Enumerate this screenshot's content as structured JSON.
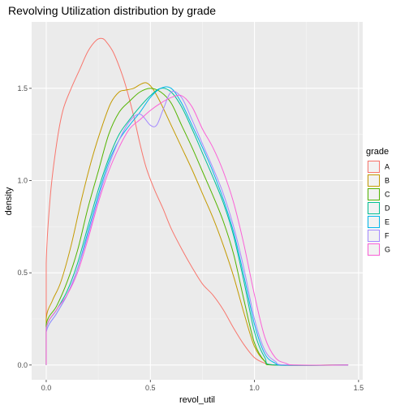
{
  "chart_data": {
    "type": "line",
    "title": "Revolving Utilization distribution by grade",
    "xlabel": "revol_util",
    "ylabel": "density",
    "xlim": [
      -0.07,
      1.52
    ],
    "ylim": [
      -0.08,
      1.86
    ],
    "xticks": [
      0.0,
      0.5,
      1.0,
      1.5
    ],
    "xtick_labels": [
      "0.0",
      "0.5",
      "1.0",
      "1.5"
    ],
    "yticks": [
      0.0,
      0.5,
      1.0,
      1.5
    ],
    "ytick_labels": [
      "0.0",
      "0.5",
      "1.0",
      "1.5"
    ],
    "grid": true,
    "background": "#ebebeb",
    "legend": {
      "title": "grade",
      "placement": "right"
    },
    "series": [
      {
        "name": "A",
        "color": "#F8766D",
        "x": [
          0,
          0,
          0.02,
          0.05,
          0.08,
          0.12,
          0.16,
          0.2,
          0.24,
          0.27,
          0.29,
          0.32,
          0.35,
          0.38,
          0.42,
          0.45,
          0.48,
          0.52,
          0.56,
          0.6,
          0.65,
          0.7,
          0.75,
          0.8,
          0.85,
          0.9,
          0.95,
          1.0,
          1.05,
          1.1,
          1.45
        ],
        "y": [
          0,
          0.55,
          0.92,
          1.2,
          1.38,
          1.5,
          1.6,
          1.7,
          1.76,
          1.77,
          1.75,
          1.7,
          1.62,
          1.52,
          1.35,
          1.2,
          1.07,
          0.95,
          0.85,
          0.74,
          0.63,
          0.53,
          0.44,
          0.38,
          0.3,
          0.2,
          0.11,
          0.04,
          0.01,
          0.0,
          0.0
        ]
      },
      {
        "name": "B",
        "color": "#C49A00",
        "x": [
          0,
          0,
          0.03,
          0.07,
          0.12,
          0.17,
          0.22,
          0.27,
          0.31,
          0.35,
          0.38,
          0.42,
          0.45,
          0.48,
          0.51,
          0.55,
          0.6,
          0.65,
          0.7,
          0.75,
          0.8,
          0.85,
          0.9,
          0.95,
          1.0,
          1.05,
          1.1,
          1.45
        ],
        "y": [
          0,
          0.25,
          0.35,
          0.45,
          0.65,
          0.9,
          1.12,
          1.3,
          1.42,
          1.48,
          1.49,
          1.5,
          1.52,
          1.53,
          1.5,
          1.42,
          1.3,
          1.18,
          1.06,
          0.93,
          0.8,
          0.65,
          0.48,
          0.28,
          0.1,
          0.02,
          0.0,
          0.0
        ]
      },
      {
        "name": "C",
        "color": "#53B400",
        "x": [
          0,
          0,
          0.05,
          0.1,
          0.15,
          0.2,
          0.25,
          0.3,
          0.35,
          0.4,
          0.45,
          0.5,
          0.55,
          0.6,
          0.65,
          0.7,
          0.75,
          0.8,
          0.85,
          0.9,
          0.95,
          1.0,
          1.05,
          1.1,
          1.45
        ],
        "y": [
          0,
          0.22,
          0.32,
          0.45,
          0.62,
          0.85,
          1.05,
          1.25,
          1.37,
          1.43,
          1.48,
          1.5,
          1.48,
          1.42,
          1.3,
          1.18,
          1.05,
          0.92,
          0.78,
          0.6,
          0.35,
          0.12,
          0.02,
          0.0,
          0.0
        ]
      },
      {
        "name": "D",
        "color": "#00C094",
        "x": [
          0,
          0,
          0.05,
          0.1,
          0.15,
          0.2,
          0.25,
          0.3,
          0.35,
          0.4,
          0.45,
          0.5,
          0.55,
          0.6,
          0.65,
          0.7,
          0.75,
          0.8,
          0.85,
          0.9,
          0.95,
          1.0,
          1.05,
          1.1,
          1.45
        ],
        "y": [
          0,
          0.2,
          0.3,
          0.4,
          0.55,
          0.75,
          0.95,
          1.12,
          1.25,
          1.33,
          1.4,
          1.46,
          1.5,
          1.48,
          1.4,
          1.28,
          1.15,
          1.02,
          0.88,
          0.7,
          0.45,
          0.18,
          0.04,
          0.0,
          0.0
        ]
      },
      {
        "name": "E",
        "color": "#00B6EB",
        "x": [
          0,
          0,
          0.05,
          0.1,
          0.15,
          0.2,
          0.25,
          0.3,
          0.35,
          0.4,
          0.45,
          0.5,
          0.55,
          0.6,
          0.65,
          0.7,
          0.75,
          0.8,
          0.85,
          0.9,
          0.95,
          1.0,
          1.05,
          1.1,
          1.15,
          1.45
        ],
        "y": [
          0,
          0.18,
          0.28,
          0.38,
          0.52,
          0.72,
          0.92,
          1.1,
          1.22,
          1.3,
          1.37,
          1.45,
          1.5,
          1.5,
          1.42,
          1.3,
          1.18,
          1.05,
          0.9,
          0.72,
          0.48,
          0.22,
          0.06,
          0.01,
          0.0,
          0.0
        ]
      },
      {
        "name": "F",
        "color": "#A58AFF",
        "x": [
          0,
          0,
          0.05,
          0.1,
          0.15,
          0.2,
          0.25,
          0.3,
          0.35,
          0.4,
          0.45,
          0.5,
          0.53,
          0.56,
          0.6,
          0.65,
          0.7,
          0.75,
          0.8,
          0.85,
          0.9,
          0.95,
          1.0,
          1.05,
          1.1,
          1.15,
          1.45
        ],
        "y": [
          0,
          0.18,
          0.28,
          0.38,
          0.52,
          0.7,
          0.9,
          1.08,
          1.22,
          1.32,
          1.36,
          1.3,
          1.3,
          1.38,
          1.48,
          1.45,
          1.33,
          1.2,
          1.07,
          0.93,
          0.75,
          0.52,
          0.25,
          0.08,
          0.02,
          0.0,
          0.0
        ]
      },
      {
        "name": "G",
        "color": "#FB61D7",
        "x": [
          0,
          0,
          0.05,
          0.1,
          0.15,
          0.2,
          0.25,
          0.3,
          0.35,
          0.4,
          0.45,
          0.5,
          0.55,
          0.6,
          0.65,
          0.7,
          0.75,
          0.8,
          0.85,
          0.9,
          0.95,
          1.0,
          1.05,
          1.1,
          1.15,
          1.2,
          1.45
        ],
        "y": [
          0,
          0.2,
          0.3,
          0.38,
          0.5,
          0.68,
          0.88,
          1.05,
          1.18,
          1.28,
          1.33,
          1.38,
          1.42,
          1.45,
          1.46,
          1.4,
          1.28,
          1.18,
          1.05,
          0.88,
          0.65,
          0.38,
          0.15,
          0.04,
          0.01,
          0.0,
          0.0
        ]
      }
    ]
  }
}
